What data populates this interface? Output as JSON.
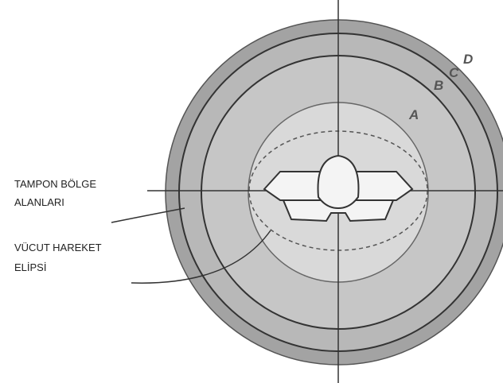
{
  "annotations": [
    {
      "lines": [
        "TAMPON BÖLGE",
        "ALANLARI"
      ]
    },
    {
      "lines": [
        "VÜCUT HAREKET",
        "ELİPSİ"
      ]
    }
  ],
  "zone_labels": [
    "A",
    "B",
    "C",
    "D"
  ]
}
